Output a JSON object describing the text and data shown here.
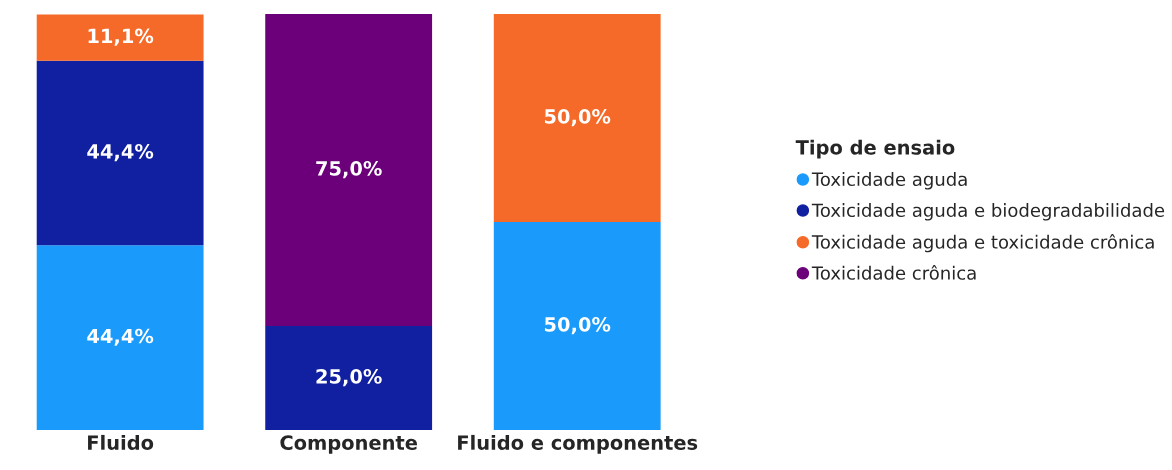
{
  "chart_data": {
    "type": "bar",
    "stacked": true,
    "categories": [
      "Fluido",
      "Componente",
      "Fluido e componentes"
    ],
    "ylim": [
      0,
      100
    ],
    "tick_labels": "x",
    "legend": "right",
    "legend_title": "Tipo de ensaio",
    "marker": "circle",
    "grid": false,
    "series": [
      {
        "name": "Toxicidade aguda",
        "color": "#1a9bfc",
        "values": [
          44.4,
          null,
          50.0
        ],
        "value_labels": [
          "44,4%",
          null,
          "50,0%"
        ]
      },
      {
        "name": "Toxicidade aguda e biodegradabilidade",
        "color": "#1020a0",
        "values": [
          44.4,
          25.0,
          null
        ],
        "value_labels": [
          "44,4%",
          "25,0%",
          null
        ]
      },
      {
        "name": "Toxicidade aguda e toxicidade crônica",
        "color": "#f56a28",
        "values": [
          11.1,
          null,
          50.0
        ],
        "value_labels": [
          "11,1%",
          null,
          "50,0%"
        ]
      },
      {
        "name": "Toxicidade crônica",
        "color": "#6b007a",
        "values": [
          null,
          75.0,
          null
        ],
        "value_labels": [
          null,
          "75,0%",
          null
        ]
      }
    ]
  }
}
